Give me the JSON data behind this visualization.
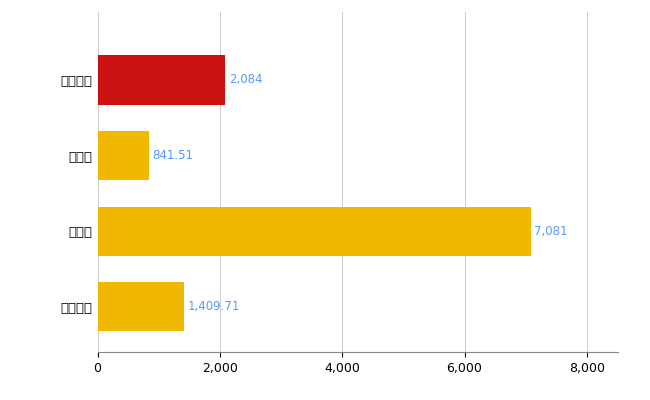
{
  "categories": [
    "宜野湾市",
    "県平均",
    "県最大",
    "全国平均"
  ],
  "values": [
    2084,
    841.51,
    7081,
    1409.71
  ],
  "labels": [
    "2,084",
    "841.51",
    "7,081",
    "1,409.71"
  ],
  "bar_colors": [
    "#cc1111",
    "#f0b800",
    "#f0b800",
    "#f0b800"
  ],
  "background_color": "#ffffff",
  "xlim": [
    0,
    8500
  ],
  "xticks": [
    0,
    2000,
    4000,
    6000,
    8000
  ],
  "grid_color": "#cccccc",
  "label_color": "#5599ff",
  "label_fontsize": 8.5,
  "ytick_fontsize": 9.5,
  "xtick_fontsize": 9,
  "bar_height": 0.65
}
